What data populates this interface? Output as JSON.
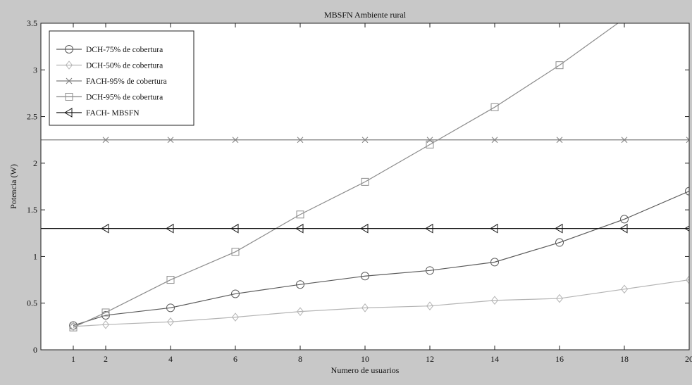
{
  "chart_data": {
    "type": "line",
    "title": "MBSFN Ambiente rural",
    "xlabel": "Numero de usuarios",
    "ylabel": "Potencia (W)",
    "xlim": [
      0,
      20
    ],
    "ylim": [
      0,
      3.5
    ],
    "xticks": [
      1,
      2,
      4,
      6,
      8,
      10,
      12,
      14,
      16,
      18,
      20
    ],
    "yticks": [
      0,
      0.5,
      1,
      1.5,
      2,
      2.5,
      3,
      3.5
    ],
    "grid": false,
    "legend_position": "top-left",
    "series": [
      {
        "name": "DCH-75% de cobertura",
        "marker": "circle",
        "color": "#5a5a5a",
        "x": [
          1,
          2,
          4,
          6,
          8,
          10,
          12,
          14,
          16,
          18,
          20
        ],
        "y": [
          0.26,
          0.37,
          0.45,
          0.6,
          0.7,
          0.79,
          0.85,
          0.94,
          1.15,
          1.4,
          1.7
        ]
      },
      {
        "name": "DCH-50% de cobertura",
        "marker": "diamond",
        "color": "#b4b4b4",
        "x": [
          1,
          2,
          4,
          6,
          8,
          10,
          12,
          14,
          16,
          18,
          20
        ],
        "y": [
          0.25,
          0.27,
          0.3,
          0.35,
          0.41,
          0.45,
          0.47,
          0.53,
          0.55,
          0.65,
          0.75
        ]
      },
      {
        "name": "FACH-95% de cobertura",
        "marker": "x",
        "color": "#7d7d7d",
        "x": [
          0,
          2,
          4,
          6,
          8,
          10,
          12,
          14,
          16,
          18,
          20
        ],
        "y": [
          2.25,
          2.25,
          2.25,
          2.25,
          2.25,
          2.25,
          2.25,
          2.25,
          2.25,
          2.25,
          2.25
        ]
      },
      {
        "name": "DCH-95% de cobertura",
        "marker": "square",
        "color": "#8c8c8c",
        "x": [
          1,
          2,
          4,
          6,
          8,
          10,
          12,
          14,
          16,
          18
        ],
        "y": [
          0.24,
          0.4,
          0.75,
          1.05,
          1.45,
          1.8,
          2.2,
          2.6,
          3.05,
          3.55
        ]
      },
      {
        "name": "FACH- MBSFN",
        "marker": "triangle-left",
        "color": "#141414",
        "x": [
          0,
          2,
          4,
          6,
          8,
          10,
          12,
          14,
          16,
          18,
          20
        ],
        "y": [
          1.3,
          1.3,
          1.3,
          1.3,
          1.3,
          1.3,
          1.3,
          1.3,
          1.3,
          1.3,
          1.3
        ]
      }
    ]
  }
}
